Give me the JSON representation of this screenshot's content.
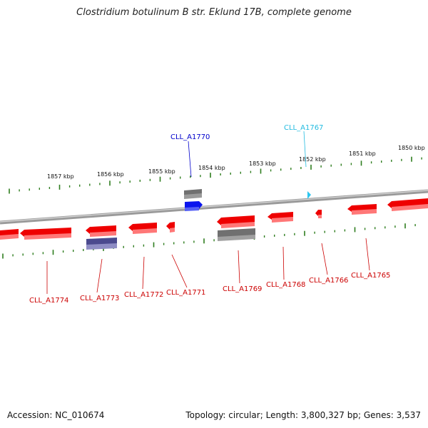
{
  "title": "Clostridium botulinum B str. Eklund 17B, complete genome",
  "footer": {
    "accession_label": "Accession:",
    "accession": "NC_010674",
    "topology_label": "Topology:",
    "topology": "circular",
    "length_label": "Length:",
    "length": "3,800,327 bp",
    "genes_label": "Genes:",
    "genes": "3,537"
  },
  "colors": {
    "backbone": "#8a8a8a",
    "tick": "#2e7d1e",
    "gene_red": "#ee0000",
    "gene_gray": "#707070",
    "gene_navy": "#4b4a8e",
    "gene_blue": "#0a14ee",
    "gene_cyan": "#2cc6f0",
    "label_red": "#cc0000",
    "label_blue": "#0000cc",
    "label_cyan": "#22bbe0"
  },
  "scale_labels": [
    "1857 kbp",
    "1856 kbp",
    "1855 kbp",
    "1854 kbp",
    "1853 kbp",
    "1852 kbp",
    "1851 kbp",
    "1850 kbp"
  ],
  "genes": [
    {
      "id": "CLL_A1774",
      "color": "red",
      "strand": "-"
    },
    {
      "id": "CLL_A1773",
      "color": "red",
      "strand": "-"
    },
    {
      "id": "CLL_A1772",
      "color": "red",
      "strand": "-"
    },
    {
      "id": "CLL_A1771",
      "color": "red",
      "strand": "-"
    },
    {
      "id": "CLL_A1770",
      "color": "blue",
      "strand": "+"
    },
    {
      "id": "CLL_A1769",
      "color": "red",
      "strand": "-"
    },
    {
      "id": "CLL_A1768",
      "color": "red",
      "strand": "-"
    },
    {
      "id": "CLL_A1767",
      "color": "cyan",
      "strand": "+"
    },
    {
      "id": "CLL_A1766",
      "color": "red",
      "strand": "-"
    },
    {
      "id": "CLL_A1765",
      "color": "red",
      "strand": "-"
    }
  ]
}
